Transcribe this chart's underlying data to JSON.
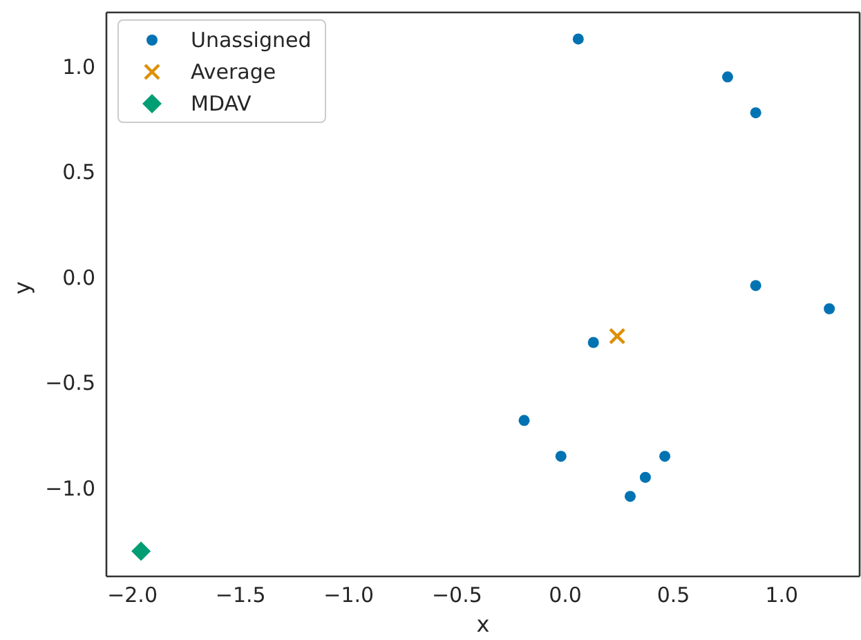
{
  "chart_data": {
    "type": "scatter",
    "xlabel": "x",
    "ylabel": "y",
    "xlim": [
      -2.12,
      1.36
    ],
    "ylim": [
      -1.42,
      1.256
    ],
    "xticks": [
      {
        "value": -2,
        "label": "−2.0"
      },
      {
        "value": -1.5,
        "label": "−1.5"
      },
      {
        "value": -1,
        "label": "−1.0"
      },
      {
        "value": -0.5,
        "label": "−0.5"
      },
      {
        "value": 0,
        "label": "0.0"
      },
      {
        "value": 0.5,
        "label": "0.5"
      },
      {
        "value": 1,
        "label": "1.0"
      }
    ],
    "yticks": [
      {
        "value": -1,
        "label": "−1.0"
      },
      {
        "value": -0.5,
        "label": "−0.5"
      },
      {
        "value": 0,
        "label": "0.0"
      },
      {
        "value": 0.5,
        "label": "0.5"
      },
      {
        "value": 1,
        "label": "1.0"
      }
    ],
    "legend": "top left",
    "series": [
      {
        "name": "Unassigned",
        "color": "#0173b2",
        "marker": "circle",
        "x": [
          0.06,
          0.75,
          0.88,
          0.88,
          1.22,
          0.13,
          -0.19,
          -0.02,
          0.46,
          0.37,
          0.3
        ],
        "values": [
          1.13,
          0.95,
          0.78,
          -0.04,
          -0.15,
          -0.31,
          -0.68,
          -0.85,
          -0.85,
          -0.95,
          -1.04
        ]
      },
      {
        "name": "Average",
        "color": "#de8f05",
        "marker": "cross",
        "x": [
          0.24
        ],
        "values": [
          -0.28
        ]
      },
      {
        "name": "MDAV",
        "color": "#029e73",
        "marker": "diamond",
        "x": [
          -1.96
        ],
        "values": [
          -1.3
        ]
      }
    ]
  }
}
